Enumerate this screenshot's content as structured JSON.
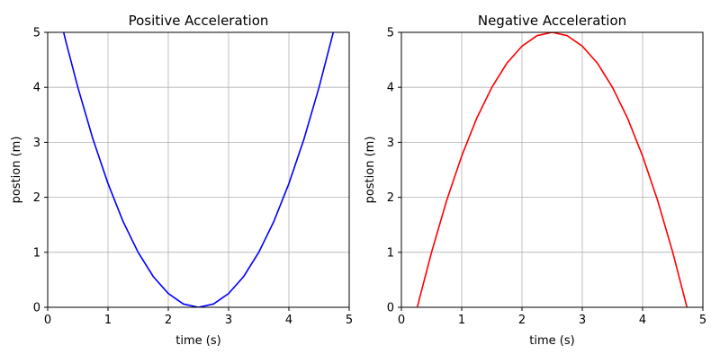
{
  "chart_data": [
    {
      "type": "line",
      "title": "Positive Acceleration",
      "xlabel": "time (s)",
      "ylabel": "postion (m)",
      "xlim": [
        0,
        5
      ],
      "ylim": [
        0,
        5
      ],
      "xticks": [
        "0",
        "1",
        "2",
        "3",
        "4",
        "5"
      ],
      "yticks": [
        "0",
        "1",
        "2",
        "3",
        "4",
        "5"
      ],
      "grid": true,
      "series": [
        {
          "color": "#0000ff",
          "x": [
            0.2,
            0.3,
            0.5,
            0.75,
            1.0,
            1.25,
            1.5,
            1.75,
            2.0,
            2.25,
            2.5,
            2.75,
            3.0,
            3.25,
            3.5,
            3.75,
            4.0,
            4.25,
            4.5,
            4.75,
            4.8
          ],
          "y": [
            5.29,
            4.84,
            4.0,
            3.06,
            2.25,
            1.56,
            1.0,
            0.56,
            0.25,
            0.06,
            0.0,
            0.06,
            0.25,
            0.56,
            1.0,
            1.56,
            2.25,
            3.06,
            4.0,
            5.06,
            5.29
          ]
        }
      ]
    },
    {
      "type": "line",
      "title": "Negative Acceleration",
      "xlabel": "time (s)",
      "ylabel": "postion (m)",
      "xlim": [
        0,
        5
      ],
      "ylim": [
        0,
        5
      ],
      "xticks": [
        "0",
        "1",
        "2",
        "3",
        "4",
        "5"
      ],
      "yticks": [
        "0",
        "1",
        "2",
        "3",
        "4",
        "5"
      ],
      "grid": true,
      "series": [
        {
          "color": "#ff0000",
          "x": [
            0.2,
            0.3,
            0.5,
            0.75,
            1.0,
            1.25,
            1.5,
            1.75,
            2.0,
            2.25,
            2.5,
            2.75,
            3.0,
            3.25,
            3.5,
            3.75,
            4.0,
            4.25,
            4.5,
            4.75,
            4.8
          ],
          "y": [
            -0.29,
            0.16,
            1.0,
            1.94,
            2.75,
            3.44,
            4.0,
            4.44,
            4.75,
            4.94,
            5.0,
            4.94,
            4.75,
            4.44,
            4.0,
            3.44,
            2.75,
            1.94,
            1.0,
            -0.06,
            -0.29
          ]
        }
      ]
    }
  ]
}
